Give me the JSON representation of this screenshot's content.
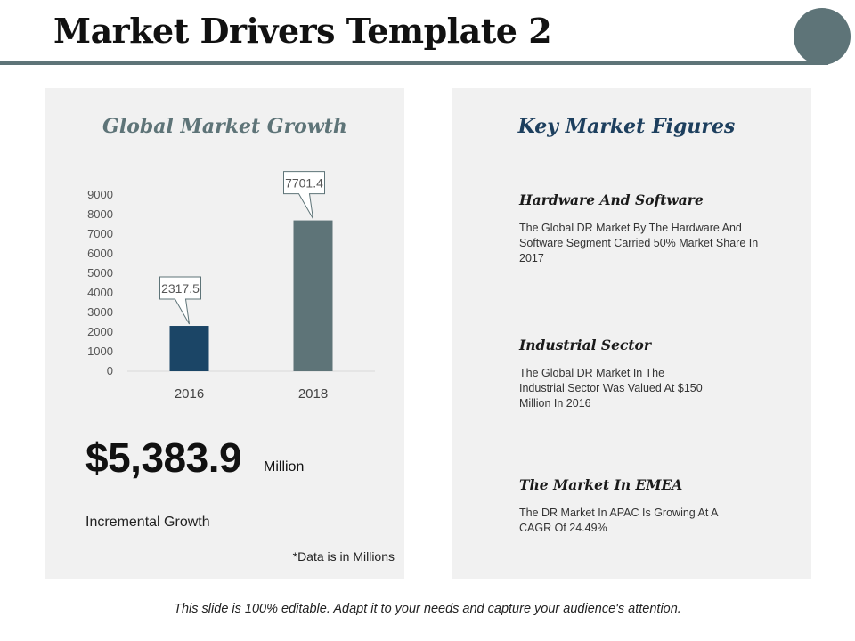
{
  "header": {
    "title": "Market Drivers Template 2",
    "accent_color": "#5e7478"
  },
  "left_panel": {
    "title": "Global Market Growth",
    "big_value": "$5,383.9",
    "big_unit": "Million",
    "growth_label": "Incremental Growth",
    "footnote": "*Data is in Millions"
  },
  "chart_data": {
    "type": "bar",
    "title": "Global Market Growth",
    "categories": [
      "2016",
      "2018"
    ],
    "values": [
      2317.5,
      7701.4
    ],
    "data_labels": [
      "2317.5",
      "7701.4"
    ],
    "bar_colors": [
      "#1b4566",
      "#5e7478"
    ],
    "ylim": [
      0,
      9000
    ],
    "yticks": [
      0,
      1000,
      2000,
      3000,
      4000,
      5000,
      6000,
      7000,
      8000,
      9000
    ],
    "xlabel": "",
    "ylabel": "",
    "grid": false,
    "legend": "none"
  },
  "right_panel": {
    "title": "Key Market Figures",
    "figures": [
      {
        "title": "Hardware And Software",
        "text": "The Global DR Market By The Hardware And Software Segment Carried 50% Market Share In 2017"
      },
      {
        "title": "Industrial Sector",
        "text": "The Global DR Market In The Industrial Sector Was Valued At $150 Million In 2016"
      },
      {
        "title": "The Market In EMEA",
        "text": "The DR Market In APAC Is Growing At A CAGR Of 24.49%"
      }
    ]
  },
  "footer": {
    "text": "This slide is 100% editable. Adapt it to your needs and capture your audience's attention."
  }
}
